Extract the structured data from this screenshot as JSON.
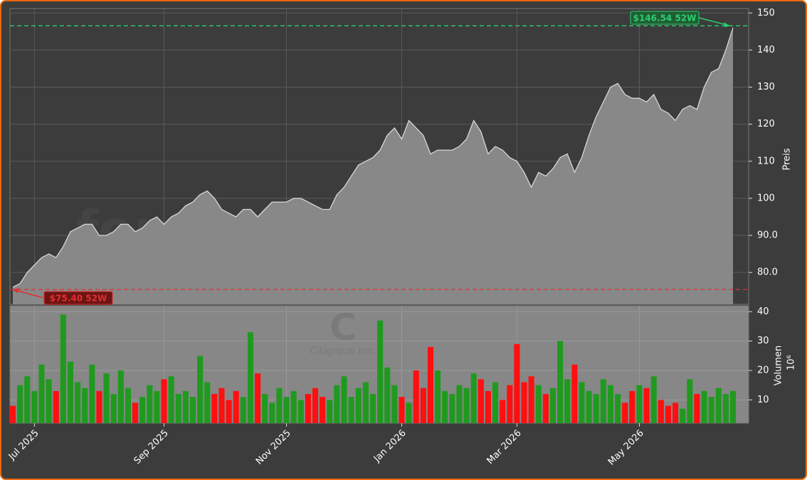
{
  "chart_data": [
    {
      "type": "area",
      "ylabel": "Preis",
      "line_color": "#d8d8d8",
      "fill_color": "#888888",
      "grid": true,
      "ylim": [
        71.4,
        151.2
      ],
      "yticks": [
        {
          "value": 80,
          "label": "80.0"
        },
        {
          "value": 90,
          "label": "90.0"
        },
        100,
        110,
        120,
        130,
        140,
        150
      ],
      "values": [
        76,
        77,
        80,
        82,
        84,
        85,
        84,
        87,
        91,
        92,
        93,
        93,
        90,
        90,
        91,
        93,
        93,
        91,
        92,
        94,
        95,
        93,
        95,
        96,
        98,
        99,
        101,
        102,
        100,
        97,
        96,
        95,
        97,
        97,
        95,
        97,
        99,
        99,
        99,
        100,
        100,
        99,
        98,
        97,
        97,
        101,
        103,
        106,
        109,
        110,
        111,
        113,
        117,
        119,
        116,
        121,
        119,
        117,
        112,
        113,
        113,
        113,
        114,
        116,
        121,
        118,
        112,
        114,
        113,
        111,
        110,
        107,
        103,
        107,
        106,
        108,
        111,
        112,
        107,
        111,
        117,
        122,
        126,
        130,
        131,
        128,
        127,
        127,
        126,
        128,
        124,
        123,
        121,
        124,
        125,
        124,
        130,
        134,
        135,
        140,
        146
      ],
      "annotations": [
        {
          "text": "$146.54 52W",
          "value": 146.54,
          "color": "#2ecc71"
        },
        {
          "text": "$75.40 52W",
          "value": 75.4,
          "color": "#e03030"
        }
      ],
      "watermark": "forexsignale.trade"
    },
    {
      "type": "bar",
      "ylabel": "Volumen",
      "unit": "10⁶",
      "up_color": "#1f9a1f",
      "down_color": "#ff0f0f",
      "grid": true,
      "ylim": [
        2.1,
        42
      ],
      "yticks": [
        10,
        20,
        30,
        40
      ],
      "symbol": "C",
      "company": "Citigroup Inc.",
      "categories": [
        null,
        null,
        null,
        "Jul 2025",
        null,
        null,
        null,
        null,
        null,
        null,
        null,
        null,
        null,
        null,
        null,
        null,
        null,
        null,
        null,
        null,
        null,
        "Sep 2025",
        null,
        null,
        null,
        null,
        null,
        null,
        null,
        null,
        null,
        null,
        null,
        null,
        null,
        null,
        null,
        null,
        "Nov 2025",
        null,
        null,
        null,
        null,
        null,
        null,
        null,
        null,
        null,
        null,
        null,
        null,
        null,
        null,
        null,
        "Jan 2026",
        null,
        null,
        null,
        null,
        null,
        null,
        null,
        null,
        null,
        null,
        null,
        null,
        null,
        null,
        null,
        "Mar 2026",
        null,
        null,
        null,
        null,
        null,
        null,
        null,
        null,
        null,
        null,
        null,
        null,
        null,
        null,
        null,
        null,
        "May 2026",
        null,
        null,
        null,
        null,
        null,
        null,
        null,
        null,
        null,
        null,
        null,
        null,
        null
      ],
      "values": [
        8,
        15,
        18,
        13,
        22,
        17,
        13,
        39,
        23,
        16,
        14,
        22,
        13,
        19,
        12,
        20,
        14,
        9,
        11,
        15,
        13,
        17,
        18,
        12,
        13,
        11,
        25,
        16,
        12,
        14,
        10,
        13,
        11,
        33,
        19,
        12,
        9,
        14,
        11,
        13,
        10,
        12,
        14,
        11,
        10,
        15,
        18,
        11,
        14,
        16,
        12,
        37,
        21,
        15,
        11,
        9,
        20,
        14,
        28,
        20,
        13,
        12,
        15,
        14,
        19,
        17,
        13,
        16,
        10,
        15,
        29,
        16,
        18,
        15,
        12,
        14,
        30,
        17,
        22,
        16,
        13,
        12,
        17,
        15,
        12,
        9,
        13,
        15,
        14,
        18,
        10,
        8,
        9,
        7,
        17,
        12,
        13,
        11,
        14,
        12,
        13
      ]
    }
  ]
}
